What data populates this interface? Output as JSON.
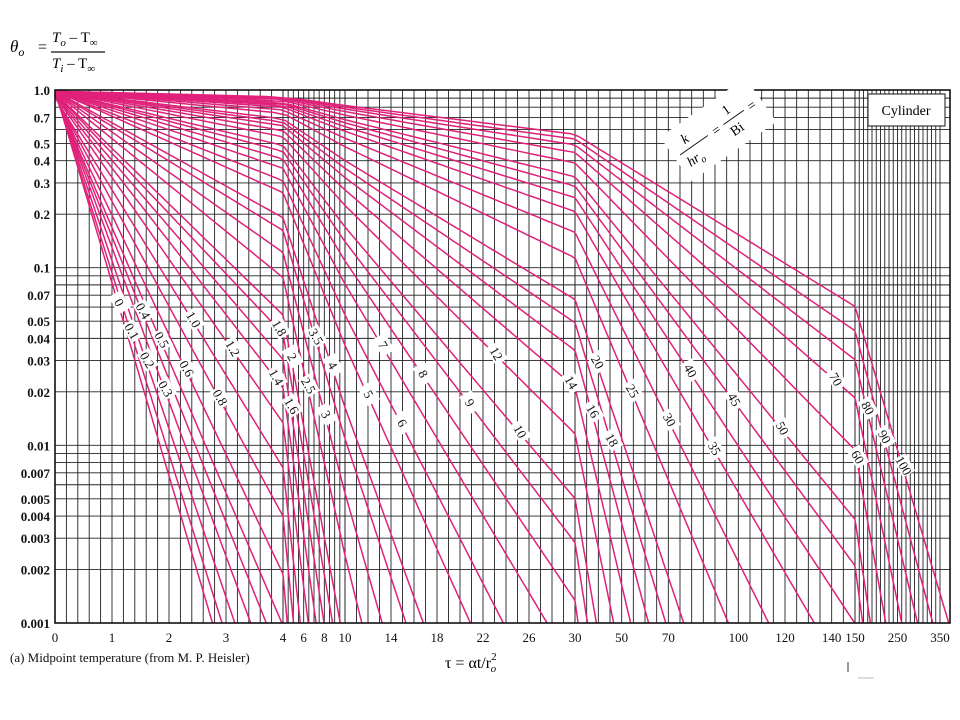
{
  "title": {
    "theta": "θ",
    "theta_sub": "o",
    "equals": "=",
    "num_T": "T",
    "num_sub1": "o",
    "num_minus": " – T",
    "num_sub2": "∞",
    "den_T": "T",
    "den_sub1": "i",
    "den_minus": " – T",
    "den_sub2": "∞"
  },
  "caption": "(a) Midpoint temperature (from M. P. Heisler)",
  "xlabel": {
    "text": "τ = αt/r",
    "sup": "2",
    "sub": "o"
  },
  "legend_box": "Cylinder",
  "param_label": {
    "k": "k",
    "hr": "hr",
    "hr_sub": "o",
    "eq1": "=",
    "one": "1",
    "bi": "Bi",
    "eq2": "="
  },
  "chart_data": {
    "type": "line",
    "title": "θo = (To – T∞)/(Ti – T∞)",
    "xlabel": "τ = αt/ro²",
    "ylabel": "θo",
    "yscale": "log",
    "ylim": [
      0.001,
      1.0
    ],
    "legend": "top-right",
    "grid": true,
    "y_ticks": [
      "1.0",
      "0.7",
      "0.5",
      "0.4",
      "0.3",
      "0.2",
      "0.1",
      "0.07",
      "0.05",
      "0.04",
      "0.03",
      "0.02",
      "0.01",
      "0.007",
      "0.005",
      "0.004",
      "0.003",
      "0.002",
      "0.001"
    ],
    "y_tick_values": [
      1.0,
      0.7,
      0.5,
      0.4,
      0.3,
      0.2,
      0.1,
      0.07,
      0.05,
      0.04,
      0.03,
      0.02,
      0.01,
      0.007,
      0.005,
      0.004,
      0.003,
      0.002,
      0.001
    ],
    "x_axis_segments": [
      {
        "range": [
          0,
          4
        ],
        "ticks": [
          0,
          1,
          2,
          3,
          4
        ],
        "tick_labels": [
          "0",
          "1",
          "2",
          "3",
          "4"
        ]
      },
      {
        "range": [
          4,
          10
        ],
        "ticks": [
          4,
          6,
          8,
          10
        ],
        "tick_labels": [
          "4",
          "6",
          "8",
          "10"
        ]
      },
      {
        "range": [
          10,
          30
        ],
        "ticks": [
          10,
          14,
          18,
          22,
          26,
          30
        ],
        "tick_labels": [
          "10",
          "14",
          "18",
          "22",
          "26",
          "30"
        ]
      },
      {
        "range": [
          30,
          150
        ],
        "ticks": [
          30,
          50,
          70,
          100,
          120,
          140,
          150
        ],
        "tick_labels": [
          "30",
          "50",
          "70",
          "100",
          "120",
          "140",
          "150"
        ]
      },
      {
        "range": [
          150,
          350
        ],
        "ticks": [
          150,
          250,
          350
        ],
        "tick_labels": [
          "150",
          "250",
          "350"
        ]
      }
    ],
    "series": [
      {
        "name": "0",
        "start": 1.0,
        "slope": 2.5
      },
      {
        "name": "0.1",
        "start": 0.98,
        "slope": 2.35
      },
      {
        "name": "0.2",
        "start": 0.97,
        "slope": 2.18
      },
      {
        "name": "0.3",
        "start": 0.96,
        "slope": 2.0
      },
      {
        "name": "0.4",
        "start": 0.95,
        "slope": 1.85
      },
      {
        "name": "0.5",
        "start": 0.94,
        "slope": 1.72
      },
      {
        "name": "0.6",
        "start": 0.93,
        "slope": 1.55
      },
      {
        "name": "0.8",
        "start": 0.92,
        "slope": 1.36
      },
      {
        "name": "1.0",
        "start": 0.91,
        "slope": 1.2
      },
      {
        "name": "1.2",
        "start": 0.93,
        "slope": 1.06
      },
      {
        "name": "1.4",
        "start": 0.94,
        "slope": 0.95
      },
      {
        "name": "1.6",
        "start": 0.95,
        "slope": 0.86
      },
      {
        "name": "1.8",
        "start": 0.96,
        "slope": 0.78
      },
      {
        "name": "2",
        "start": 0.965,
        "slope": 0.72
      },
      {
        "name": "2.5",
        "start": 0.97,
        "slope": 0.6
      },
      {
        "name": "3",
        "start": 0.975,
        "slope": 0.52
      },
      {
        "name": "3.5",
        "start": 0.98,
        "slope": 0.45
      },
      {
        "name": "4",
        "start": 0.985,
        "slope": 0.41
      },
      {
        "name": "5",
        "start": 0.99,
        "slope": 0.33
      },
      {
        "name": "6",
        "start": 0.985,
        "slope": 0.29
      },
      {
        "name": "7",
        "start": 0.985,
        "slope": 0.25
      },
      {
        "name": "8",
        "start": 0.985,
        "slope": 0.22
      },
      {
        "name": "9",
        "start": 0.985,
        "slope": 0.195
      },
      {
        "name": "10",
        "start": 0.985,
        "slope": 0.176
      },
      {
        "name": "12",
        "start": 0.985,
        "slope": 0.148
      },
      {
        "name": "14",
        "start": 0.985,
        "slope": 0.128
      },
      {
        "name": "16",
        "start": 0.985,
        "slope": 0.112
      },
      {
        "name": "18",
        "start": 0.985,
        "slope": 0.1
      },
      {
        "name": "20",
        "start": 0.985,
        "slope": 0.09
      },
      {
        "name": "25",
        "start": 0.985,
        "slope": 0.072
      },
      {
        "name": "30",
        "start": 0.985,
        "slope": 0.061
      },
      {
        "name": "35",
        "start": 0.985,
        "slope": 0.052
      },
      {
        "name": "40",
        "start": 0.985,
        "slope": 0.046
      },
      {
        "name": "45",
        "start": 0.985,
        "slope": 0.041
      },
      {
        "name": "50",
        "start": 0.985,
        "slope": 0.037
      },
      {
        "name": "60",
        "start": 0.985,
        "slope": 0.031
      },
      {
        "name": "70",
        "start": 0.985,
        "slope": 0.0265
      },
      {
        "name": "80",
        "start": 0.985,
        "slope": 0.0232
      },
      {
        "name": "90",
        "start": 0.985,
        "slope": 0.0207
      },
      {
        "name": "100",
        "start": 0.985,
        "slope": 0.0186
      }
    ]
  }
}
